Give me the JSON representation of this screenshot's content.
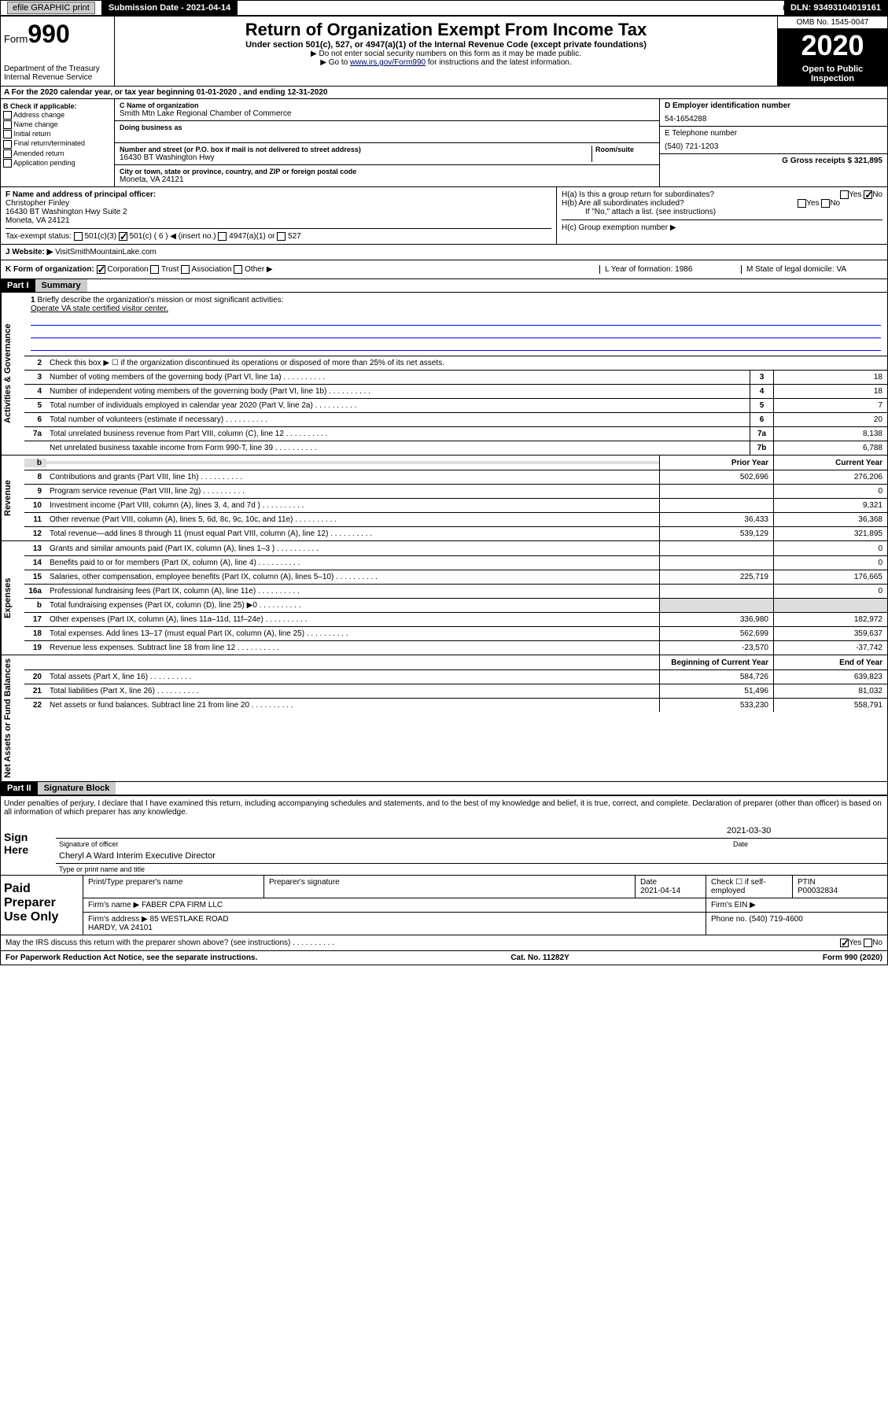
{
  "topbar": {
    "efile": "efile GRAPHIC print",
    "submission_label": "Submission Date - 2021-04-14",
    "dln_label": "DLN: 93493104019161"
  },
  "header": {
    "form_word": "Form",
    "form_num": "990",
    "title": "Return of Organization Exempt From Income Tax",
    "subtitle": "Under section 501(c), 527, or 4947(a)(1) of the Internal Revenue Code (except private foundations)",
    "note1": "▶ Do not enter social security numbers on this form as it may be made public.",
    "note2a": "▶ Go to ",
    "note2_link": "www.irs.gov/Form990",
    "note2b": " for instructions and the latest information.",
    "dept": "Department of the Treasury\nInternal Revenue Service",
    "omb": "OMB No. 1545-0047",
    "year": "2020",
    "open": "Open to Public Inspection"
  },
  "section_a": "A  For the 2020 calendar year, or tax year beginning 01-01-2020    , and ending 12-31-2020",
  "col_b": {
    "hdr": "B Check if applicable:",
    "items": [
      "Address change",
      "Name change",
      "Initial return",
      "Final return/terminated",
      "Amended return",
      "Application pending"
    ]
  },
  "col_c": {
    "name_label": "C Name of organization",
    "name": "Smith Mtn Lake Regional Chamber of Commerce",
    "dba_label": "Doing business as",
    "addr_label": "Number and street (or P.O. box if mail is not delivered to street address)",
    "room_label": "Room/suite",
    "addr": "16430 BT Washington Hwy",
    "city_label": "City or town, state or province, country, and ZIP or foreign postal code",
    "city": "Moneta, VA  24121"
  },
  "col_d": {
    "ein_label": "D Employer identification number",
    "ein": "54-1654288",
    "phone_label": "E Telephone number",
    "phone": "(540) 721-1203",
    "gross_label": "G Gross receipts $ 321,895"
  },
  "row_f": {
    "label": "F  Name and address of principal officer:",
    "name": "Christopher Finley",
    "addr": "16430 BT Washington Hwy Suite 2\nMoneta, VA  24121"
  },
  "row_h": {
    "a": "H(a)  Is this a group return for subordinates?",
    "b": "H(b)  Are all subordinates included?",
    "note": "If \"No,\" attach a list. (see instructions)",
    "c": "H(c)  Group exemption number ▶"
  },
  "tax_exempt": {
    "label": "Tax-exempt status:",
    "opts": [
      "501(c)(3)",
      "501(c) ( 6 ) ◀ (insert no.)",
      "4947(a)(1) or",
      "527"
    ]
  },
  "website": {
    "label": "J   Website: ▶",
    "val": "VisitSmithMountainLake.com"
  },
  "row_k": {
    "label": "K Form of organization:",
    "opts": [
      "Corporation",
      "Trust",
      "Association",
      "Other ▶"
    ],
    "l": "L Year of formation: 1986",
    "m": "M State of legal domicile: VA"
  },
  "part1": {
    "hdr": "Part I",
    "title": "Summary"
  },
  "mission": {
    "num": "1",
    "label": "Briefly describe the organization's mission or most significant activities:",
    "text": "Operate VA state certified visitor center."
  },
  "line2": "Check this box ▶ ☐  if the organization discontinued its operations or disposed of more than 25% of its net assets.",
  "vtabs": {
    "gov": "Activities & Governance",
    "rev": "Revenue",
    "exp": "Expenses",
    "net": "Net Assets or Fund Balances"
  },
  "gov_lines": [
    {
      "n": "3",
      "d": "Number of voting members of the governing body (Part VI, line 1a)",
      "b": "3",
      "v": "18"
    },
    {
      "n": "4",
      "d": "Number of independent voting members of the governing body (Part VI, line 1b)",
      "b": "4",
      "v": "18"
    },
    {
      "n": "5",
      "d": "Total number of individuals employed in calendar year 2020 (Part V, line 2a)",
      "b": "5",
      "v": "7"
    },
    {
      "n": "6",
      "d": "Total number of volunteers (estimate if necessary)",
      "b": "6",
      "v": "20"
    },
    {
      "n": "7a",
      "d": "Total unrelated business revenue from Part VIII, column (C), line 12",
      "b": "7a",
      "v": "8,138"
    },
    {
      "n": "",
      "d": "Net unrelated business taxable income from Form 990-T, line 39",
      "b": "7b",
      "v": "6,788"
    }
  ],
  "col_hdrs": {
    "prior": "Prior Year",
    "current": "Current Year",
    "boy": "Beginning of Current Year",
    "eoy": "End of Year"
  },
  "rev_lines": [
    {
      "n": "8",
      "d": "Contributions and grants (Part VIII, line 1h)",
      "p": "502,696",
      "c": "276,206"
    },
    {
      "n": "9",
      "d": "Program service revenue (Part VIII, line 2g)",
      "p": "",
      "c": "0"
    },
    {
      "n": "10",
      "d": "Investment income (Part VIII, column (A), lines 3, 4, and 7d )",
      "p": "",
      "c": "9,321"
    },
    {
      "n": "11",
      "d": "Other revenue (Part VIII, column (A), lines 5, 6d, 8c, 9c, 10c, and 11e)",
      "p": "36,433",
      "c": "36,368"
    },
    {
      "n": "12",
      "d": "Total revenue—add lines 8 through 11 (must equal Part VIII, column (A), line 12)",
      "p": "539,129",
      "c": "321,895"
    }
  ],
  "exp_lines": [
    {
      "n": "13",
      "d": "Grants and similar amounts paid (Part IX, column (A), lines 1–3 )",
      "p": "",
      "c": "0"
    },
    {
      "n": "14",
      "d": "Benefits paid to or for members (Part IX, column (A), line 4)",
      "p": "",
      "c": "0"
    },
    {
      "n": "15",
      "d": "Salaries, other compensation, employee benefits (Part IX, column (A), lines 5–10)",
      "p": "225,719",
      "c": "176,665"
    },
    {
      "n": "16a",
      "d": "Professional fundraising fees (Part IX, column (A), line 11e)",
      "p": "",
      "c": "0"
    },
    {
      "n": "b",
      "d": "Total fundraising expenses (Part IX, column (D), line 25) ▶0",
      "p": null,
      "c": null
    },
    {
      "n": "17",
      "d": "Other expenses (Part IX, column (A), lines 11a–11d, 11f–24e)",
      "p": "336,980",
      "c": "182,972"
    },
    {
      "n": "18",
      "d": "Total expenses. Add lines 13–17 (must equal Part IX, column (A), line 25)",
      "p": "562,699",
      "c": "359,637"
    },
    {
      "n": "19",
      "d": "Revenue less expenses. Subtract line 18 from line 12",
      "p": "-23,570",
      "c": "-37,742"
    }
  ],
  "net_lines": [
    {
      "n": "20",
      "d": "Total assets (Part X, line 16)",
      "p": "584,726",
      "c": "639,823"
    },
    {
      "n": "21",
      "d": "Total liabilities (Part X, line 26)",
      "p": "51,496",
      "c": "81,032"
    },
    {
      "n": "22",
      "d": "Net assets or fund balances. Subtract line 21 from line 20",
      "p": "533,230",
      "c": "558,791"
    }
  ],
  "part2": {
    "hdr": "Part II",
    "title": "Signature Block"
  },
  "perjury": "Under penalties of perjury, I declare that I have examined this return, including accompanying schedules and statements, and to the best of my knowledge and belief, it is true, correct, and complete. Declaration of preparer (other than officer) is based on all information of which preparer has any knowledge.",
  "sign": {
    "here": "Sign Here",
    "sig_label": "Signature of officer",
    "date": "2021-03-30",
    "date_label": "Date",
    "name": "Cheryl A Ward Interim Executive Director",
    "name_label": "Type or print name and title"
  },
  "paid": {
    "title": "Paid Preparer Use Only",
    "prep_name_label": "Print/Type preparer's name",
    "prep_sig_label": "Preparer's signature",
    "date_label": "Date",
    "date": "2021-04-14",
    "self_label": "Check ☐ if self-employed",
    "ptin_label": "PTIN",
    "ptin": "P00032834",
    "firm_name_label": "Firm's name    ▶",
    "firm_name": "FABER CPA FIRM LLC",
    "firm_ein_label": "Firm's EIN ▶",
    "firm_addr_label": "Firm's address ▶",
    "firm_addr": "85 WESTLAKE ROAD\nHARDY, VA  24101",
    "phone_label": "Phone no. (540) 719-4600"
  },
  "discuss": "May the IRS discuss this return with the preparer shown above? (see instructions)",
  "footer": {
    "left": "For Paperwork Reduction Act Notice, see the separate instructions.",
    "mid": "Cat. No. 11282Y",
    "right": "Form 990 (2020)"
  }
}
